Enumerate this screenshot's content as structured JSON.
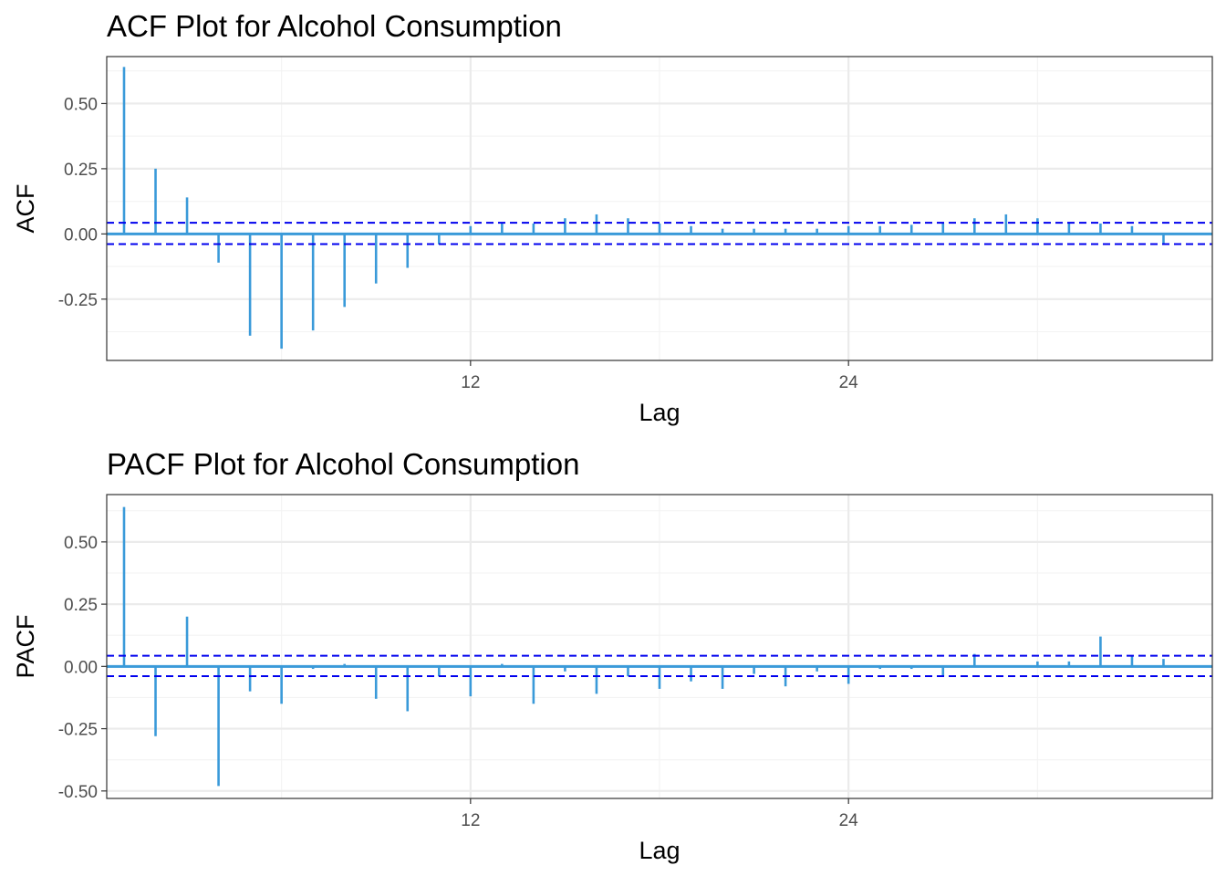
{
  "colors": {
    "bar": "#3a9ad9",
    "bound": "#0000ee",
    "grid_major": "#ebebeb",
    "grid_minor": "#f3f3f3",
    "panel_border": "#333333",
    "tick_text": "#4d4d4d"
  },
  "chart_data": [
    {
      "type": "bar",
      "title": "ACF Plot for Alcohol Consumption",
      "xlabel": "Lag",
      "ylabel": "ACF",
      "xlim": [
        0.45,
        35.55
      ],
      "ylim": [
        -0.485,
        0.68
      ],
      "x_ticks": [
        12,
        24
      ],
      "y_ticks": [
        -0.25,
        0.0,
        0.25,
        0.5
      ],
      "y_tick_labels": [
        "-0.25",
        "0.00",
        "0.25",
        "0.50"
      ],
      "conf_bounds": [
        0.043,
        -0.039
      ],
      "grid": true,
      "lags": [
        1,
        2,
        3,
        4,
        5,
        6,
        7,
        8,
        9,
        10,
        11,
        12,
        13,
        14,
        15,
        16,
        17,
        18,
        19,
        20,
        21,
        22,
        23,
        24,
        25,
        26,
        27,
        28,
        29,
        30,
        31,
        32,
        33,
        34,
        35
      ],
      "values": [
        0.64,
        0.25,
        0.14,
        -0.11,
        -0.39,
        -0.44,
        -0.37,
        -0.28,
        -0.19,
        -0.13,
        -0.04,
        0.03,
        0.04,
        0.04,
        0.06,
        0.075,
        0.06,
        0.04,
        0.03,
        0.02,
        0.02,
        0.02,
        0.02,
        0.03,
        0.03,
        0.035,
        0.04,
        0.06,
        0.075,
        0.06,
        0.04,
        0.04,
        0.03,
        -0.04,
        0.0
      ]
    },
    {
      "type": "bar",
      "title": "PACF Plot for Alcohol Consumption",
      "xlabel": "Lag",
      "ylabel": "PACF",
      "xlim": [
        0.45,
        35.55
      ],
      "ylim": [
        -0.53,
        0.69
      ],
      "x_ticks": [
        12,
        24
      ],
      "y_ticks": [
        -0.5,
        -0.25,
        0.0,
        0.25,
        0.5
      ],
      "y_tick_labels": [
        "-0.50",
        "-0.25",
        "0.00",
        "0.25",
        "0.50"
      ],
      "conf_bounds": [
        0.043,
        -0.039
      ],
      "grid": true,
      "lags": [
        1,
        2,
        3,
        4,
        5,
        6,
        7,
        8,
        9,
        10,
        11,
        12,
        13,
        14,
        15,
        16,
        17,
        18,
        19,
        20,
        21,
        22,
        23,
        24,
        25,
        26,
        27,
        28,
        29,
        30,
        31,
        32,
        33,
        34,
        35
      ],
      "values": [
        0.64,
        -0.28,
        0.2,
        -0.48,
        -0.1,
        -0.15,
        -0.01,
        0.01,
        -0.13,
        -0.18,
        -0.04,
        -0.12,
        0.01,
        -0.15,
        -0.02,
        -0.11,
        -0.04,
        -0.09,
        -0.06,
        -0.09,
        -0.03,
        -0.08,
        -0.02,
        -0.07,
        -0.01,
        -0.01,
        -0.04,
        0.05,
        0.0,
        0.02,
        0.02,
        0.12,
        0.04,
        0.03,
        0.0
      ]
    }
  ]
}
